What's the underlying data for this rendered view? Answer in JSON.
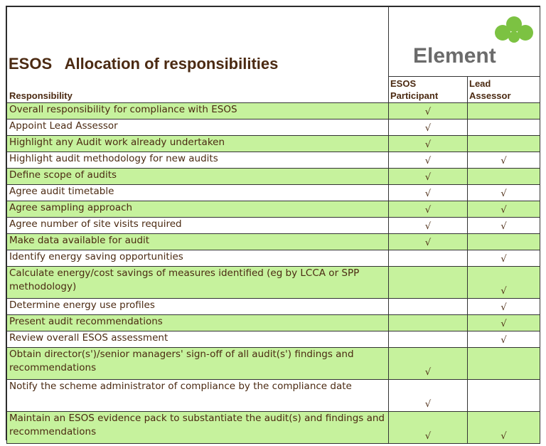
{
  "header": {
    "title": "ESOS   Allocation of responsibilities",
    "logo_text": "Element"
  },
  "columns": {
    "responsibility": "Responsibility",
    "participant": "ESOS\nParticipant",
    "lead": "Lead\nAssessor"
  },
  "check_mark": "√",
  "colors": {
    "green_row": "#c6f29d",
    "text_brown": "#4b2a12",
    "logo_green": "#7cc242",
    "logo_gray": "#6b6b6b"
  },
  "rows": [
    {
      "text": "Overall responsibility for compliance with ESOS",
      "participant": true,
      "lead": false,
      "shade": "green"
    },
    {
      "text": "Appoint Lead Assessor",
      "participant": true,
      "lead": false,
      "shade": "white"
    },
    {
      "text": "Highlight any Audit work already undertaken",
      "participant": true,
      "lead": false,
      "shade": "green"
    },
    {
      "text": "Highlight audit methodology for new audits",
      "participant": true,
      "lead": true,
      "shade": "white"
    },
    {
      "text": "Define scope of audits",
      "participant": true,
      "lead": false,
      "shade": "green"
    },
    {
      "text": "Agree audit timetable",
      "participant": true,
      "lead": true,
      "shade": "white"
    },
    {
      "text": "Agree sampling approach",
      "participant": true,
      "lead": true,
      "shade": "green"
    },
    {
      "text": "Agree number of site visits required",
      "participant": true,
      "lead": true,
      "shade": "white"
    },
    {
      "text": "Make data available for audit",
      "participant": true,
      "lead": false,
      "shade": "green"
    },
    {
      "text": "Identify energy saving opportunities",
      "participant": false,
      "lead": true,
      "shade": "white"
    },
    {
      "text": "Calculate energy/cost savings of measures identified (eg by LCCA or SPP methodology)",
      "participant": false,
      "lead": true,
      "shade": "green"
    },
    {
      "text": "Determine energy use profiles",
      "participant": false,
      "lead": true,
      "shade": "white"
    },
    {
      "text": "Present audit recommendations",
      "participant": false,
      "lead": true,
      "shade": "green"
    },
    {
      "text": "Review overall ESOS assessment",
      "participant": false,
      "lead": true,
      "shade": "white"
    },
    {
      "text": "Obtain director(s')/senior managers' sign-off of all audit(s') findings and recommendations",
      "participant": true,
      "lead": false,
      "shade": "green"
    },
    {
      "text": "Notify the scheme administrator of compliance by the compliance date",
      "participant": true,
      "lead": false,
      "shade": "white"
    },
    {
      "text": "Maintain an ESOS evidence pack to substantiate the audit(s) and findings and recommendations",
      "participant": true,
      "lead": true,
      "shade": "green"
    }
  ]
}
